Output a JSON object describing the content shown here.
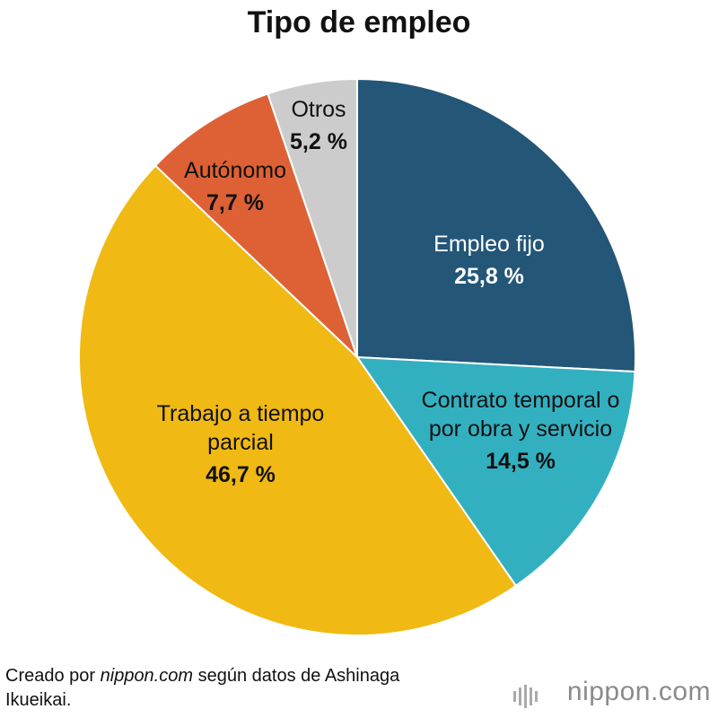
{
  "chart_data": {
    "type": "pie",
    "title": "Tipo de empleo",
    "categories": [
      "Empleo fijo",
      "Contrato temporal o por obra y servicio",
      "Trabajo a tiempo parcial",
      "Autónomo",
      "Otros"
    ],
    "values": [
      25.8,
      14.5,
      46.7,
      7.7,
      5.2
    ],
    "value_labels": [
      "25,8 %",
      "14,5 %",
      "46,7 %",
      "7,7 %",
      "5,2 %"
    ],
    "colors": [
      "#235677",
      "#33b0c0",
      "#f0b913",
      "#de6135",
      "#cccccc"
    ]
  },
  "source": [
    "Creado por",
    "nippon.com",
    "según datos de Ashinaga Ikueikai."
  ],
  "logo": "nippon.com"
}
